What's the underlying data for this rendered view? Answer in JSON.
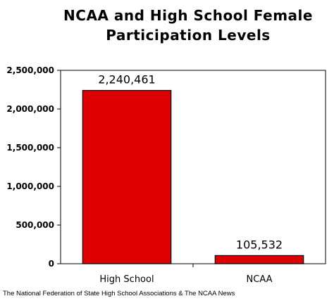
{
  "chart_data": {
    "type": "bar",
    "title_lines": [
      "NCAA and High School Female",
      "Participation Levels"
    ],
    "categories": [
      "High School",
      "NCAA"
    ],
    "values": [
      2240461,
      105532
    ],
    "data_labels": [
      "2,240,461",
      "105,532"
    ],
    "y_ticks": [
      {
        "value": 0,
        "label": "0"
      },
      {
        "value": 500000,
        "label": "500,000"
      },
      {
        "value": 1000000,
        "label": "1,000,000"
      },
      {
        "value": 1500000,
        "label": "1,500,000"
      },
      {
        "value": 2000000,
        "label": "2,000,000"
      },
      {
        "value": 2500000,
        "label": "2,500,000"
      }
    ],
    "ylim": [
      0,
      2500000
    ],
    "grid": false,
    "legend": "none",
    "bar_color": "#dd0000",
    "source": "The National Federation of State High School Associations & The NCAA News"
  }
}
